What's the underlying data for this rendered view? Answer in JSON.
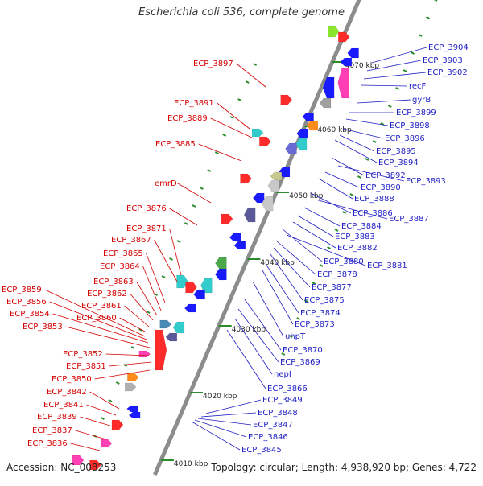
{
  "title": "Escherichia coli 536, complete genome",
  "footer": {
    "accession": "Accession: NC_008253",
    "summary": "Topology: circular; Length: 4,938,920 bp; Genes: 4,722"
  },
  "colors": {
    "backbone": "#8c8c8c",
    "left_label": "#d40000",
    "right_label": "#1f1fc4",
    "tick": "#2a8c2a",
    "forward_gene": "#ff2a2a",
    "reverse_gene": "#1a1aff"
  },
  "kbp_ticks": [
    "4070 kbp",
    "4060 kbp",
    "4050 kbp",
    "4040 kbp",
    "4030 kbp",
    "4020 kbp",
    "4010 kbp"
  ],
  "left_labels": [
    "ECP_3897",
    "ECP_3891",
    "ECP_3889",
    "ECP_3885",
    "emrD",
    "ECP_3876",
    "ECP_3871",
    "ECP_3867",
    "ECP_3865",
    "ECP_3864",
    "ECP_3863",
    "ECP_3862",
    "ECP_3861",
    "ECP_3860",
    "ECP_3859",
    "ECP_3856",
    "ECP_3854",
    "ECP_3853",
    "ECP_3852",
    "ECP_3851",
    "ECP_3850",
    "ECP_3842",
    "ECP_3841",
    "ECP_3839",
    "ECP_3837",
    "ECP_3836"
  ],
  "right_labels": [
    "ECP_3904",
    "ECP_3903",
    "ECP_3902",
    "recF",
    "gyrB",
    "ECP_3899",
    "ECP_3898",
    "ECP_3896",
    "ECP_3895",
    "ECP_3894",
    "ECP_3892",
    "ECP_3893",
    "ECP_3890",
    "ECP_3888",
    "ECP_3886",
    "ECP_3887",
    "ECP_3884",
    "ECP_3883",
    "ECP_3882",
    "ECP_3880",
    "ECP_3881",
    "ECP_3878",
    "ECP_3877",
    "ECP_3875",
    "ECP_3874",
    "ECP_3873",
    "uhpT",
    "ECP_3870",
    "ECP_3869",
    "nepI",
    "ECP_3866",
    "ECP_3849",
    "ECP_3848",
    "ECP_3847",
    "ECP_3846",
    "ECP_3845"
  ]
}
